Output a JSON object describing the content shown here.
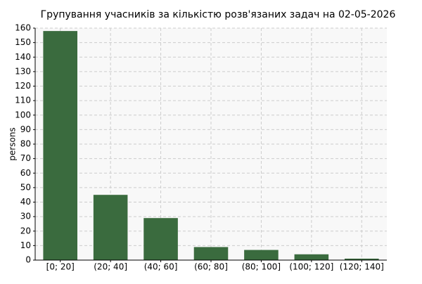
{
  "chart_data": {
    "type": "bar",
    "title": "Групування учасників за кількістю розв'язаних задач на 02-05-2026",
    "y_label": "persons",
    "categories": [
      "[0; 20]",
      "(20; 40]",
      "(40; 60]",
      "(60; 80]",
      "(80; 100]",
      "(100; 120]",
      "(120; 140]"
    ],
    "values": [
      158,
      45,
      29,
      9,
      7,
      4,
      1
    ],
    "color": "#3a6b3e",
    "ylim": [
      0,
      160
    ],
    "yticks": [
      0,
      10,
      20,
      30,
      40,
      50,
      60,
      70,
      80,
      90,
      100,
      110,
      120,
      130,
      140,
      150,
      160
    ],
    "grid": true
  }
}
